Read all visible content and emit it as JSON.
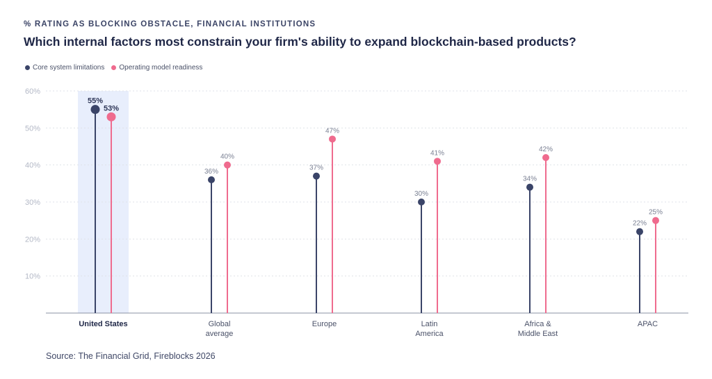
{
  "header": {
    "eyebrow": "% RATING AS BLOCKING OBSTACLE, FINANCIAL INSTITUTIONS",
    "title": "Which internal factors most constrain your firm's ability to expand blockchain-based products?"
  },
  "source": "Source: The Financial Grid, Fireblocks 2026",
  "colors": {
    "core": "#3a4468",
    "operating": "#ef6b8e",
    "highlight_band": "#e8eefc",
    "grid": "#dfe2e8"
  },
  "chart_data": {
    "type": "lollipop",
    "categories": [
      [
        "United States"
      ],
      [
        "Global",
        "average"
      ],
      [
        "Europe"
      ],
      [
        "Latin",
        "America"
      ],
      [
        "Africa &",
        "Middle East"
      ],
      [
        "APAC"
      ]
    ],
    "highlighted_category": "United States",
    "series": [
      {
        "name": "Core system limitations",
        "values": [
          55,
          36,
          37,
          30,
          34,
          22
        ],
        "color": "#3a4468"
      },
      {
        "name": "Operating model readiness",
        "values": [
          53,
          40,
          47,
          41,
          42,
          25
        ],
        "color": "#ef6b8e"
      }
    ],
    "value_labels": [
      [
        "55%",
        "36%",
        "37%",
        "30%",
        "34%",
        "22%"
      ],
      [
        "53%",
        "40%",
        "47%",
        "41%",
        "42%",
        "25%"
      ]
    ],
    "ylim": [
      0,
      60
    ],
    "yticks": [
      10,
      20,
      30,
      40,
      50,
      60
    ],
    "ytick_labels": [
      "10%",
      "20%",
      "30%",
      "40%",
      "50%",
      "60%"
    ],
    "grid": true,
    "legend_position": "top-left"
  }
}
